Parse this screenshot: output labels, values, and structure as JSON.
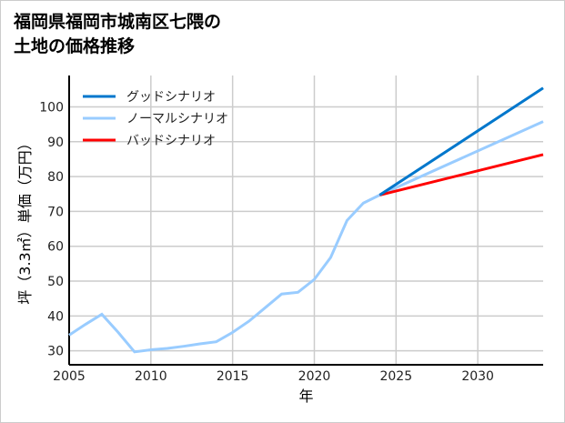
{
  "chart_data": {
    "type": "line",
    "title": "福岡県福岡市城南区七隈の\n土地の価格推移",
    "xlabel": "年",
    "ylabel": "坪（3.3㎡）単価（万円）",
    "xlim": [
      2005,
      2034
    ],
    "ylim": [
      26,
      109
    ],
    "xticks": [
      2005,
      2010,
      2015,
      2020,
      2025,
      2030
    ],
    "yticks": [
      30,
      40,
      50,
      60,
      70,
      80,
      90,
      100
    ],
    "grid": true,
    "legend_position": "top-left",
    "series": [
      {
        "name": "グッドシナリオ",
        "color": "#0077cc",
        "x": [
          2024,
          2034
        ],
        "values": [
          74.7,
          105.4
        ]
      },
      {
        "name": "ノーマルシナリオ",
        "color": "#99ccff",
        "x": [
          2005,
          2006,
          2007,
          2008,
          2009,
          2010,
          2011,
          2012,
          2013,
          2014,
          2015,
          2016,
          2017,
          2018,
          2019,
          2020,
          2021,
          2022,
          2023,
          2024,
          2034
        ],
        "values": [
          34.5,
          37.6,
          40.5,
          35.3,
          29.7,
          30.3,
          30.7,
          31.3,
          32.0,
          32.6,
          35.3,
          38.5,
          42.4,
          46.3,
          46.8,
          50.5,
          56.8,
          67.4,
          72.4,
          74.7,
          95.8
        ]
      },
      {
        "name": "バッドシナリオ",
        "color": "#ff0000",
        "x": [
          2024,
          2034
        ],
        "values": [
          74.7,
          86.3
        ]
      }
    ]
  }
}
